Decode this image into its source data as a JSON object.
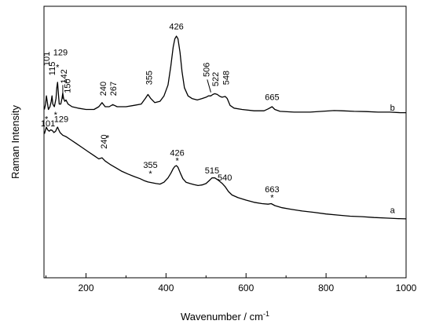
{
  "chart_data": {
    "type": "line",
    "xlabel": "Wavenumber / cm",
    "xlabel_superscript": "-1",
    "ylabel": "Raman Intensity",
    "xlim": [
      95,
      1000
    ],
    "ylim": [
      0,
      100
    ],
    "xticks": [
      200,
      400,
      600,
      800,
      1000
    ],
    "grid": false,
    "y_tick_labels": false,
    "series": [
      {
        "name": "b",
        "points": [
          [
            96,
            62
          ],
          [
            99,
            64
          ],
          [
            101,
            67
          ],
          [
            103,
            65
          ],
          [
            106,
            62
          ],
          [
            110,
            63
          ],
          [
            113,
            65
          ],
          [
            115,
            67
          ],
          [
            117,
            64
          ],
          [
            121,
            63
          ],
          [
            125,
            66
          ],
          [
            127,
            70
          ],
          [
            129,
            72
          ],
          [
            131,
            68
          ],
          [
            133,
            64
          ],
          [
            137,
            64
          ],
          [
            140,
            66
          ],
          [
            142,
            68
          ],
          [
            144,
            66
          ],
          [
            147,
            65
          ],
          [
            150,
            65.5
          ],
          [
            155,
            64
          ],
          [
            165,
            63
          ],
          [
            180,
            62.5
          ],
          [
            200,
            62
          ],
          [
            220,
            62
          ],
          [
            232,
            63
          ],
          [
            240,
            64.5
          ],
          [
            248,
            63
          ],
          [
            258,
            63
          ],
          [
            267,
            63.8
          ],
          [
            278,
            63
          ],
          [
            300,
            63
          ],
          [
            320,
            63.5
          ],
          [
            338,
            64
          ],
          [
            348,
            66
          ],
          [
            355,
            67.5
          ],
          [
            362,
            66
          ],
          [
            372,
            64.5
          ],
          [
            385,
            65
          ],
          [
            395,
            67
          ],
          [
            405,
            71
          ],
          [
            412,
            78
          ],
          [
            418,
            85
          ],
          [
            422,
            88
          ],
          [
            426,
            89
          ],
          [
            430,
            88
          ],
          [
            435,
            83
          ],
          [
            440,
            76
          ],
          [
            446,
            70
          ],
          [
            455,
            67
          ],
          [
            465,
            66
          ],
          [
            478,
            65.5
          ],
          [
            490,
            66
          ],
          [
            500,
            66.5
          ],
          [
            506,
            67
          ],
          [
            512,
            67
          ],
          [
            517,
            67.5
          ],
          [
            522,
            67.8
          ],
          [
            528,
            67.5
          ],
          [
            535,
            66.8
          ],
          [
            540,
            66.5
          ],
          [
            548,
            66.8
          ],
          [
            553,
            66
          ],
          [
            560,
            63.5
          ],
          [
            570,
            62.5
          ],
          [
            590,
            62
          ],
          [
            620,
            61.5
          ],
          [
            645,
            61.5
          ],
          [
            655,
            62.2
          ],
          [
            665,
            63
          ],
          [
            672,
            62
          ],
          [
            685,
            61.3
          ],
          [
            720,
            61
          ],
          [
            760,
            61
          ],
          [
            790,
            61.3
          ],
          [
            820,
            61.6
          ],
          [
            840,
            61.5
          ],
          [
            870,
            61.3
          ],
          [
            900,
            61.2
          ],
          [
            930,
            61
          ],
          [
            960,
            61
          ],
          [
            985,
            60.8
          ],
          [
            1000,
            60.8
          ]
        ]
      },
      {
        "name": "a",
        "points": [
          [
            96,
            53
          ],
          [
            99,
            54.5
          ],
          [
            101,
            55.5
          ],
          [
            104,
            54.5
          ],
          [
            108,
            54
          ],
          [
            112,
            54.5
          ],
          [
            116,
            54.2
          ],
          [
            120,
            53.5
          ],
          [
            124,
            54
          ],
          [
            127,
            55
          ],
          [
            129,
            55.5
          ],
          [
            131,
            54.8
          ],
          [
            135,
            53.5
          ],
          [
            142,
            52.5
          ],
          [
            150,
            52
          ],
          [
            160,
            51
          ],
          [
            175,
            49.5
          ],
          [
            190,
            48
          ],
          [
            205,
            46.5
          ],
          [
            220,
            45
          ],
          [
            232,
            43.8
          ],
          [
            240,
            44.2
          ],
          [
            248,
            43
          ],
          [
            260,
            41.8
          ],
          [
            275,
            40.5
          ],
          [
            290,
            39.2
          ],
          [
            305,
            38.2
          ],
          [
            320,
            37.3
          ],
          [
            335,
            36.5
          ],
          [
            345,
            35.8
          ],
          [
            355,
            35.3
          ],
          [
            365,
            35
          ],
          [
            375,
            34.7
          ],
          [
            385,
            34.5
          ],
          [
            395,
            35.2
          ],
          [
            405,
            36.8
          ],
          [
            412,
            38.5
          ],
          [
            418,
            40.2
          ],
          [
            422,
            41
          ],
          [
            426,
            41.3
          ],
          [
            430,
            40.7
          ],
          [
            436,
            38.5
          ],
          [
            442,
            36.5
          ],
          [
            450,
            35.2
          ],
          [
            460,
            34.7
          ],
          [
            470,
            34.3
          ],
          [
            480,
            34
          ],
          [
            490,
            34.2
          ],
          [
            500,
            34.7
          ],
          [
            508,
            35.8
          ],
          [
            515,
            36.8
          ],
          [
            522,
            36.8
          ],
          [
            530,
            36
          ],
          [
            540,
            34.8
          ],
          [
            548,
            33.5
          ],
          [
            556,
            31.8
          ],
          [
            565,
            30.5
          ],
          [
            580,
            29.5
          ],
          [
            600,
            28.6
          ],
          [
            620,
            27.8
          ],
          [
            640,
            27.3
          ],
          [
            655,
            27.1
          ],
          [
            663,
            27.3
          ],
          [
            672,
            26.6
          ],
          [
            690,
            25.8
          ],
          [
            710,
            25.3
          ],
          [
            740,
            24.6
          ],
          [
            770,
            24.1
          ],
          [
            800,
            23.5
          ],
          [
            830,
            23.1
          ],
          [
            860,
            22.7
          ],
          [
            890,
            22.5
          ],
          [
            920,
            22.2
          ],
          [
            950,
            22
          ],
          [
            980,
            21.8
          ],
          [
            1000,
            21.7
          ]
        ]
      }
    ],
    "annotations": [
      {
        "text": "101",
        "x": 101,
        "y": 78,
        "rotate": true
      },
      {
        "text": "129",
        "x": 136,
        "y": 82,
        "rotate": false
      },
      {
        "text": "*",
        "x": 129,
        "y": 76.5,
        "rotate": false
      },
      {
        "text": "115",
        "x": 115,
        "y": 74.5,
        "rotate": true
      },
      {
        "text": "142",
        "x": 144,
        "y": 71.5,
        "rotate": true
      },
      {
        "text": "150",
        "x": 153,
        "y": 68,
        "rotate": true
      },
      {
        "text": "240",
        "x": 242,
        "y": 67,
        "rotate": true
      },
      {
        "text": "267",
        "x": 268,
        "y": 67,
        "rotate": true
      },
      {
        "text": "355",
        "x": 357,
        "y": 71,
        "rotate": true
      },
      {
        "text": "426",
        "x": 426,
        "y": 91.5,
        "rotate": false
      },
      {
        "text": "506",
        "x": 500,
        "y": 74,
        "rotate": true
      },
      {
        "text": "522",
        "x": 523,
        "y": 70.5,
        "rotate": true
      },
      {
        "text": "548",
        "x": 549,
        "y": 71,
        "rotate": true
      },
      {
        "text": "665",
        "x": 665,
        "y": 65.5,
        "rotate": false
      },
      {
        "text": "b",
        "x": 966,
        "y": 61.5,
        "rotate": false
      },
      {
        "text": "*",
        "x": 101,
        "y": 57.3,
        "rotate": false
      },
      {
        "text": "101",
        "x": 105,
        "y": 55.8,
        "rotate": false
      },
      {
        "text": "*",
        "x": 124,
        "y": 59,
        "rotate": false
      },
      {
        "text": "129",
        "x": 138,
        "y": 57.3,
        "rotate": false
      },
      {
        "text": "*",
        "x": 254,
        "y": 50.5,
        "rotate": false
      },
      {
        "text": "240",
        "x": 244,
        "y": 47.5,
        "rotate": true
      },
      {
        "text": "355",
        "x": 361,
        "y": 40.5,
        "rotate": false
      },
      {
        "text": "*",
        "x": 361,
        "y": 37.3,
        "rotate": false
      },
      {
        "text": "426",
        "x": 428,
        "y": 45,
        "rotate": false
      },
      {
        "text": "*",
        "x": 428,
        "y": 42,
        "rotate": false
      },
      {
        "text": "515",
        "x": 515,
        "y": 38.5,
        "rotate": false
      },
      {
        "text": "540",
        "x": 547,
        "y": 35.8,
        "rotate": false
      },
      {
        "text": "663",
        "x": 665,
        "y": 31.5,
        "rotate": false
      },
      {
        "text": "*",
        "x": 665,
        "y": 28.5,
        "rotate": false
      },
      {
        "text": "a",
        "x": 966,
        "y": 23.8,
        "rotate": false
      }
    ]
  }
}
